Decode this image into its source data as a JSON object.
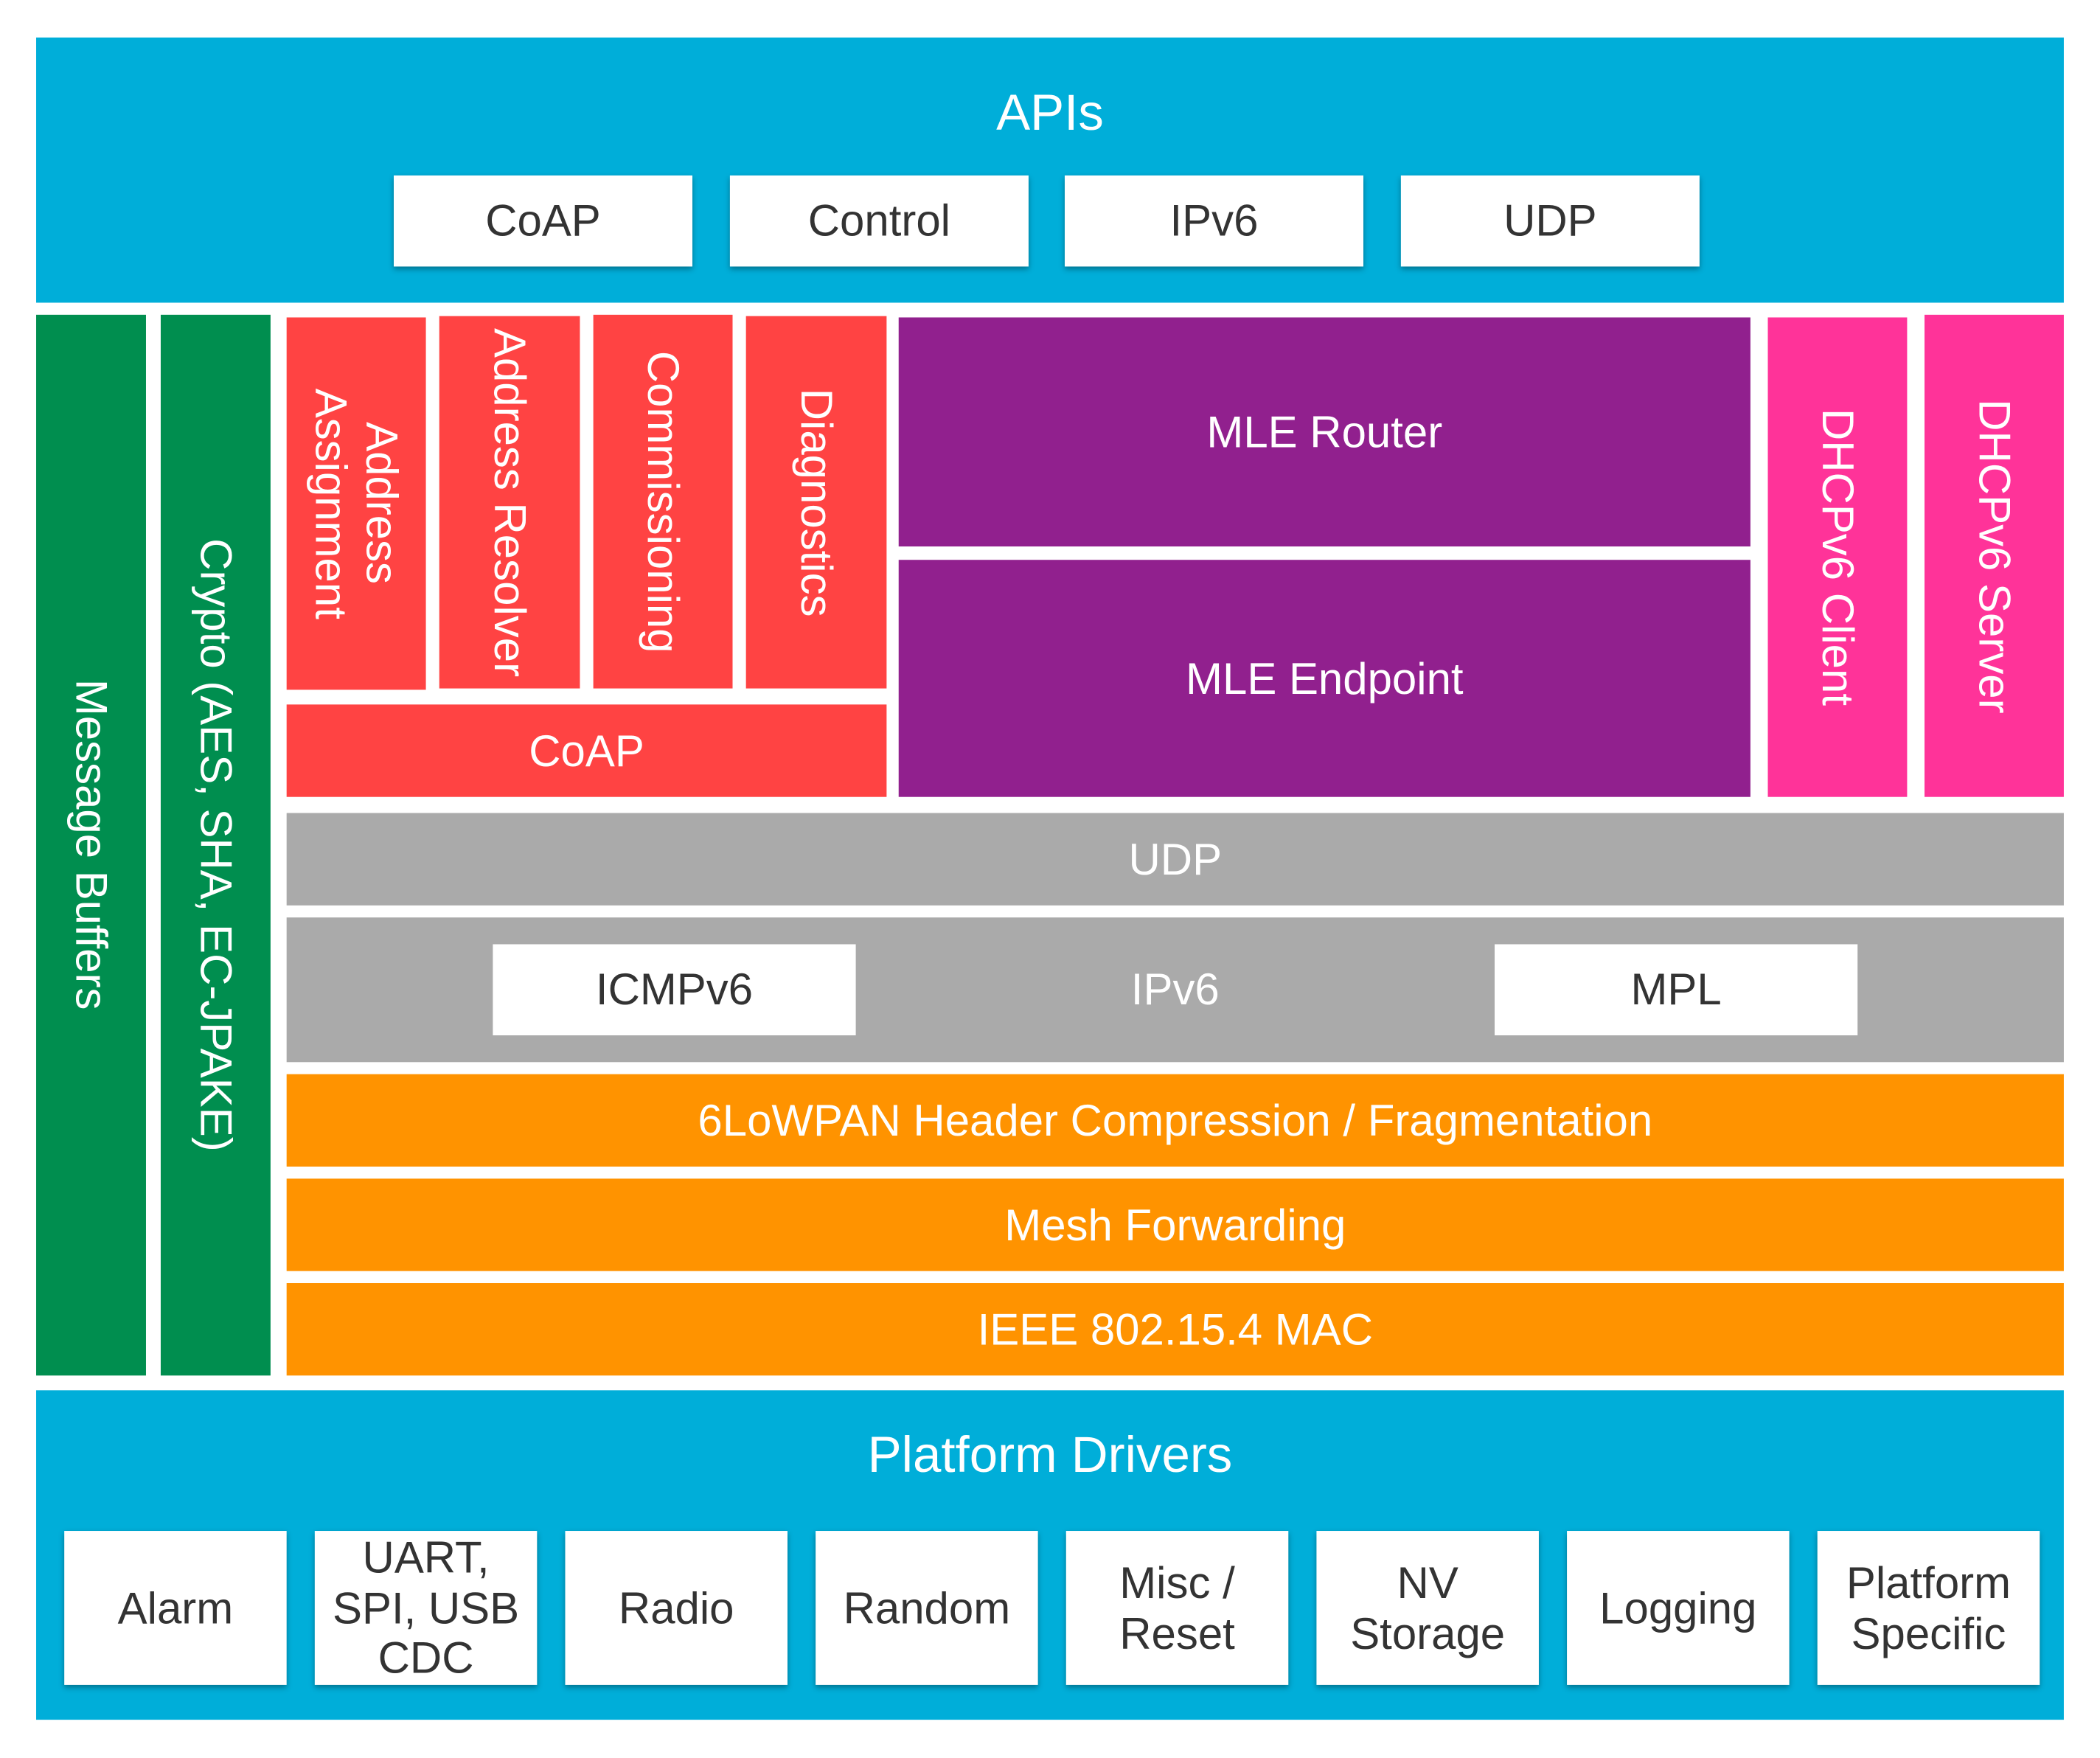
{
  "apis": {
    "title": "APIs",
    "items": [
      "CoAP",
      "Control",
      "IPv6",
      "UDP"
    ]
  },
  "side": {
    "message_buffers": "Message Buffers",
    "crypto": "Crypto (AES, SHA, EC-JPAKE)"
  },
  "services": {
    "address_assignment": "Address Assignment",
    "address_resolver": "Address Resolver",
    "commissioning": "Commissioning",
    "diagnostics": "Diagnostics",
    "coap": "CoAP"
  },
  "mle": {
    "router": "MLE Router",
    "endpoint": "MLE Endpoint"
  },
  "dhcp": {
    "client": "DHCPv6 Client",
    "server": "DHCPv6 Server"
  },
  "network": {
    "udp": "UDP",
    "ipv6": "IPv6",
    "icmpv6": "ICMPv6",
    "mpl": "MPL"
  },
  "link": {
    "sixlowpan": "6LoWPAN Header Compression / Fragmentation",
    "mesh": "Mesh Forwarding",
    "mac": "IEEE 802.15.4 MAC"
  },
  "platform": {
    "title": "Platform Drivers",
    "items": [
      "Alarm",
      "UART, SPI, USB CDC",
      "Radio",
      "Random",
      "Misc / Reset",
      "NV Storage",
      "Logging",
      "Platform Specific"
    ]
  },
  "colors": {
    "api": "#00AED9",
    "utility": "#008E4F",
    "services": "#FF4343",
    "mle": "#91208E",
    "dhcp": "#FF3399",
    "network": "#AAAAAA",
    "link": "#FF9300"
  }
}
